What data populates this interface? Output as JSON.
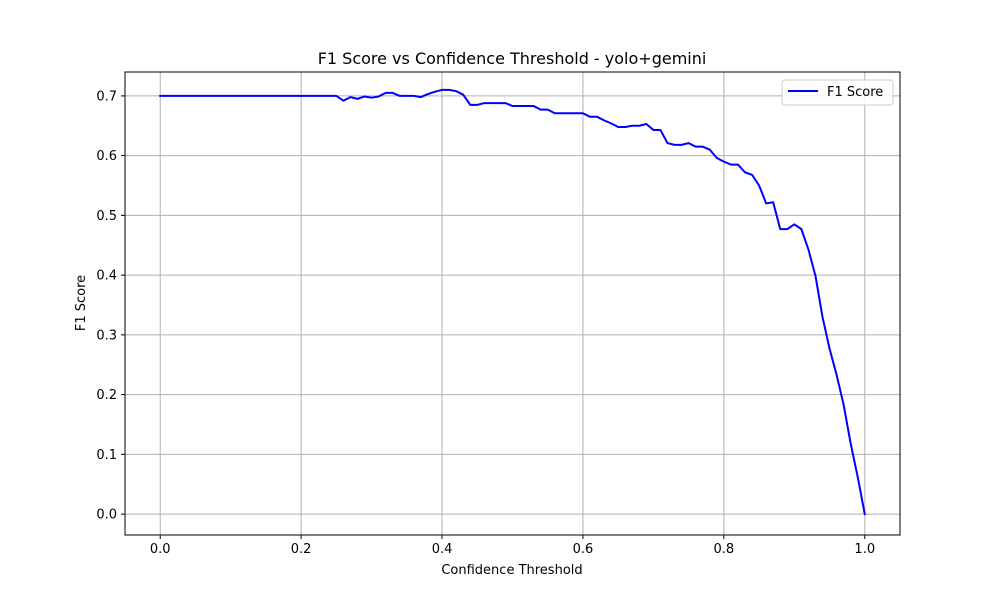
{
  "chart_data": {
    "type": "line",
    "title": "F1 Score vs Confidence Threshold - yolo+gemini",
    "xlabel": "Confidence Threshold",
    "ylabel": "F1 Score",
    "xlim": [
      -0.05,
      1.05
    ],
    "ylim": [
      -0.035,
      0.74
    ],
    "xticks": [
      0.0,
      0.2,
      0.4,
      0.6,
      0.8,
      1.0
    ],
    "xtick_labels": [
      "0.0",
      "0.2",
      "0.4",
      "0.6",
      "0.8",
      "1.0"
    ],
    "yticks": [
      0.0,
      0.1,
      0.2,
      0.3,
      0.4,
      0.5,
      0.6,
      0.7
    ],
    "ytick_labels": [
      "0.0",
      "0.1",
      "0.2",
      "0.3",
      "0.4",
      "0.5",
      "0.6",
      "0.7"
    ],
    "grid": true,
    "legend_position": "upper-right",
    "series": [
      {
        "name": "F1 Score",
        "color": "#0000ff",
        "x": [
          0.0,
          0.05,
          0.1,
          0.15,
          0.2,
          0.25,
          0.26,
          0.27,
          0.28,
          0.29,
          0.3,
          0.31,
          0.32,
          0.33,
          0.34,
          0.35,
          0.36,
          0.37,
          0.38,
          0.39,
          0.4,
          0.41,
          0.42,
          0.43,
          0.44,
          0.45,
          0.46,
          0.47,
          0.48,
          0.49,
          0.5,
          0.51,
          0.52,
          0.53,
          0.54,
          0.55,
          0.56,
          0.57,
          0.58,
          0.59,
          0.6,
          0.61,
          0.62,
          0.63,
          0.64,
          0.65,
          0.66,
          0.67,
          0.68,
          0.69,
          0.7,
          0.71,
          0.72,
          0.73,
          0.74,
          0.75,
          0.76,
          0.77,
          0.78,
          0.79,
          0.8,
          0.81,
          0.82,
          0.83,
          0.84,
          0.85,
          0.86,
          0.87,
          0.88,
          0.89,
          0.9,
          0.91,
          0.92,
          0.93,
          0.94,
          0.95,
          0.96,
          0.97,
          0.98,
          0.99,
          1.0
        ],
        "y": [
          0.7,
          0.7,
          0.7,
          0.7,
          0.7,
          0.7,
          0.692,
          0.698,
          0.695,
          0.699,
          0.697,
          0.699,
          0.705,
          0.705,
          0.7,
          0.7,
          0.7,
          0.698,
          0.703,
          0.707,
          0.71,
          0.71,
          0.708,
          0.702,
          0.685,
          0.685,
          0.688,
          0.688,
          0.688,
          0.688,
          0.683,
          0.683,
          0.683,
          0.683,
          0.677,
          0.677,
          0.671,
          0.671,
          0.671,
          0.671,
          0.671,
          0.665,
          0.665,
          0.659,
          0.654,
          0.648,
          0.648,
          0.65,
          0.65,
          0.653,
          0.643,
          0.643,
          0.621,
          0.618,
          0.618,
          0.621,
          0.615,
          0.615,
          0.61,
          0.596,
          0.59,
          0.585,
          0.585,
          0.572,
          0.568,
          0.55,
          0.52,
          0.522,
          0.477,
          0.477,
          0.485,
          0.477,
          0.443,
          0.399,
          0.33,
          0.277,
          0.233,
          0.183,
          0.118,
          0.062,
          0.0
        ]
      }
    ]
  }
}
